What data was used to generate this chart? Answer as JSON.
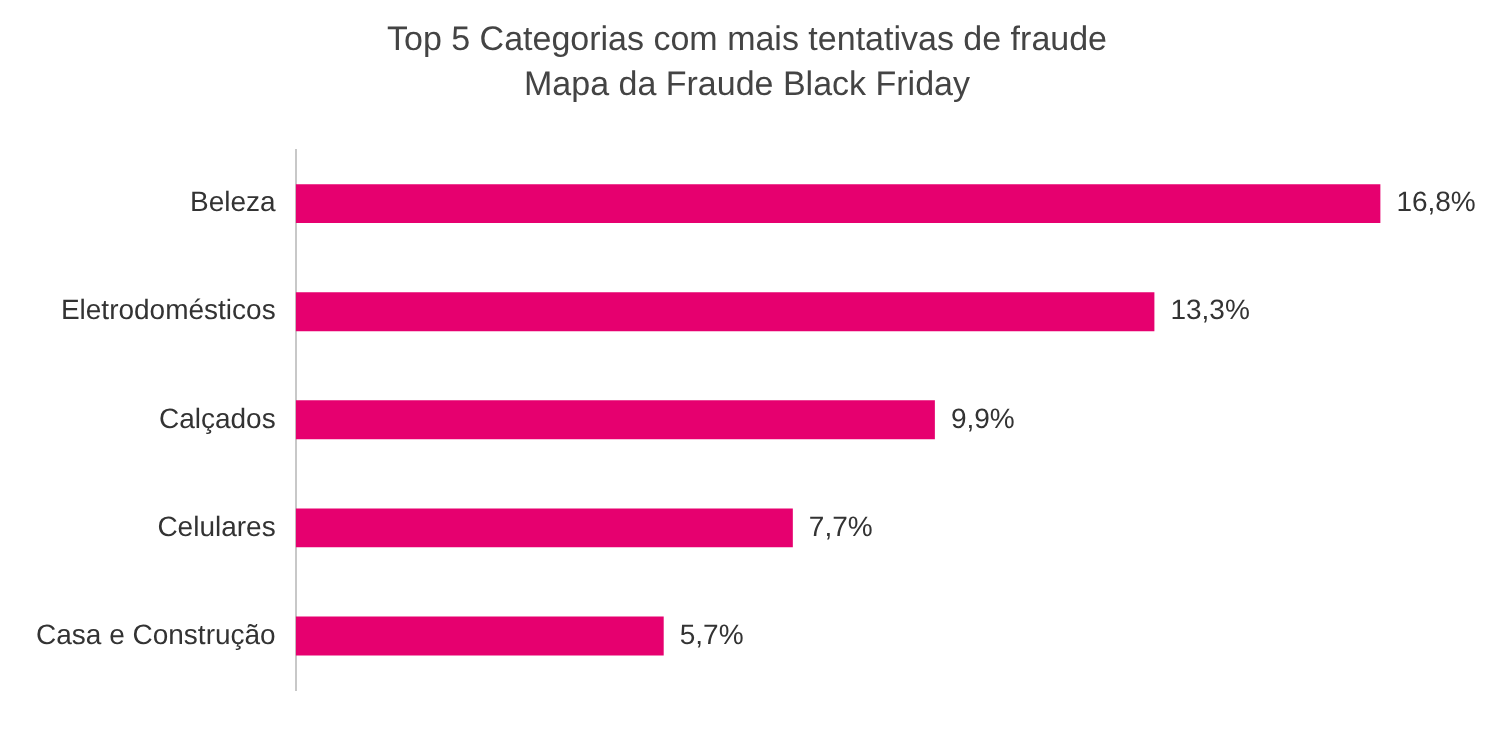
{
  "chart_data": {
    "type": "bar",
    "orientation": "horizontal",
    "title": "Top 5 Categorias com mais tentativas de fraude",
    "subtitle": "Mapa da Fraude Black Friday",
    "categories": [
      "Beleza",
      "Eletrodomésticos",
      "Calçados",
      "Celulares",
      "Casa e Construção"
    ],
    "values": [
      16.8,
      13.3,
      9.9,
      7.7,
      5.7
    ],
    "value_labels": [
      "16,8%",
      "13,3%",
      "9,9%",
      "7,7%",
      "5,7%"
    ],
    "color": "#e6006f",
    "legend": false
  }
}
